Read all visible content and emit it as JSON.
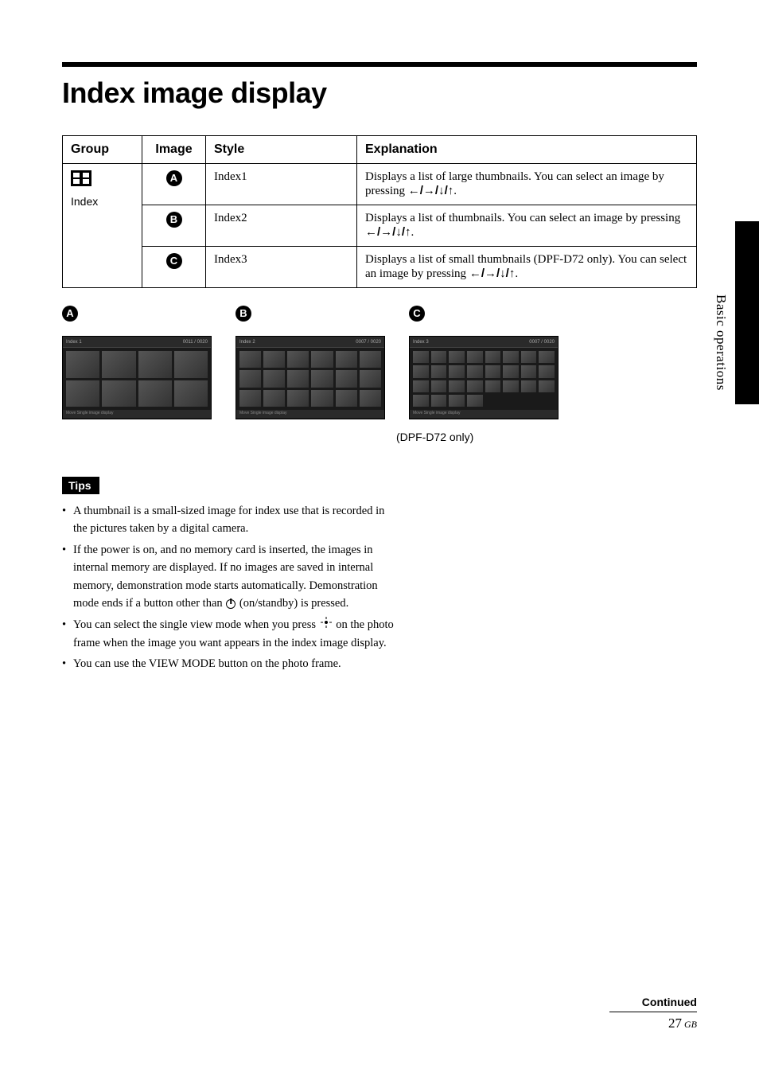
{
  "page_title": "Index image display",
  "side_tab_text": "Basic operations",
  "table": {
    "headers": {
      "group": "Group",
      "image": "Image",
      "style": "Style",
      "explanation": "Explanation"
    },
    "group_label": "Index",
    "icon_letters": [
      "A",
      "B",
      "C"
    ],
    "rows": [
      {
        "style": "Index1",
        "explanation_pre": "Displays a list of large thumbnails. You can select an image by pressing ",
        "arrows": "←/→/↓/↑",
        "explanation_post": "."
      },
      {
        "style": "Index2",
        "explanation_pre": "Displays a list of thumbnails. You can select an image by pressing ",
        "arrows": "←/→/↓/↑",
        "explanation_post": "."
      },
      {
        "style": "Index3",
        "explanation_pre": "Displays a list of small thumbnails (DPF-D72 only). You can select an image by pressing ",
        "arrows": "←/→/↓/↑",
        "explanation_post": "."
      }
    ]
  },
  "thumbs": {
    "labels": [
      "A",
      "B",
      "C"
    ],
    "grids": [
      "g4",
      "g6",
      "g8"
    ],
    "header_left": [
      "Index 1",
      "Index 2",
      "Index 3"
    ],
    "header_right": [
      "0011 / 0020",
      "0007 / 0020",
      "0007 / 0020"
    ],
    "footer_text": "Move          Single image display",
    "caption": "(DPF-D72 only)"
  },
  "tips": {
    "heading": "Tips",
    "items": [
      {
        "text": "A thumbnail is a small-sized image for index use that is recorded in the pictures taken by a digital camera."
      },
      {
        "text_pre": "If the power is on, and no memory card is inserted, the images in internal memory are displayed. If no images are saved in internal memory, demonstration mode starts automatically. Demonstration mode ends if a button other than ",
        "icon": "power",
        "text_post": " (on/standby) is pressed."
      },
      {
        "text_pre": "You can select the single view mode when you press ",
        "icon": "enter",
        "text_post": " on the photo frame when the image you want appears in the index image display."
      },
      {
        "text": "You can use the VIEW MODE button on the photo frame."
      }
    ]
  },
  "footer": {
    "continued": "Continued",
    "page_number": "27",
    "suffix": "GB"
  },
  "colors": {
    "black": "#000000",
    "white": "#ffffff",
    "thumb_bg": "#1a1a1a"
  }
}
